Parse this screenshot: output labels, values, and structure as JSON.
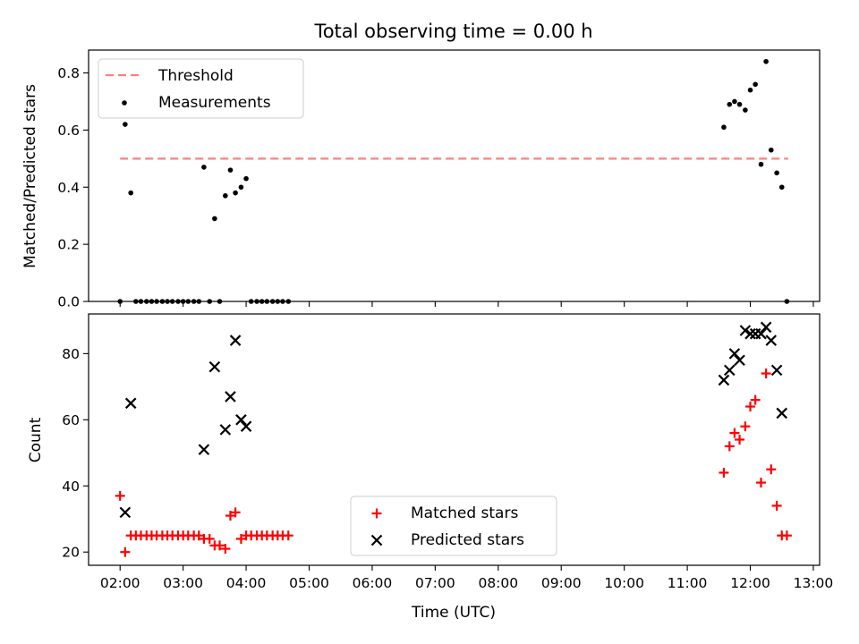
{
  "chart_data": [
    {
      "type": "scatter",
      "title": "Total observing time = 0.00 h",
      "xlabel": "",
      "ylabel": "Matched/Predicted stars",
      "ylim": [
        0,
        0.88
      ],
      "yticks": [
        "0.0",
        "0.2",
        "0.4",
        "0.6",
        "0.8"
      ],
      "xlim": [
        1.5,
        13.1
      ],
      "legend_position": "upper-left",
      "grid": false,
      "threshold": {
        "name": "Threshold",
        "value": 0.5,
        "x_range": [
          2.0,
          12.6
        ],
        "color": "#ff7f7f",
        "style": "dashed"
      },
      "series": [
        {
          "name": "Measurements",
          "color": "#000000",
          "marker": "dot",
          "x": [
            2.0,
            2.08,
            2.17,
            2.25,
            2.33,
            2.42,
            2.5,
            2.58,
            2.67,
            2.75,
            2.83,
            2.92,
            3.0,
            3.08,
            3.17,
            3.25,
            3.33,
            3.42,
            3.5,
            3.58,
            3.67,
            3.75,
            3.83,
            3.92,
            4.0,
            4.08,
            4.17,
            4.25,
            4.33,
            4.42,
            4.5,
            4.58,
            4.67,
            11.58,
            11.67,
            11.75,
            11.83,
            11.92,
            12.0,
            12.08,
            12.17,
            12.25,
            12.33,
            12.42,
            12.5,
            12.58
          ],
          "y": [
            0.0,
            0.62,
            0.38,
            0.0,
            0.0,
            0.0,
            0.0,
            0.0,
            0.0,
            0.0,
            0.0,
            0.0,
            0.0,
            0.0,
            0.0,
            0.0,
            0.47,
            0.0,
            0.29,
            0.0,
            0.37,
            0.46,
            0.38,
            0.4,
            0.43,
            0.0,
            0.0,
            0.0,
            0.0,
            0.0,
            0.0,
            0.0,
            0.0,
            0.61,
            0.69,
            0.7,
            0.69,
            0.67,
            0.74,
            0.76,
            0.48,
            0.84,
            0.53,
            0.45,
            0.4,
            0.0
          ]
        }
      ]
    },
    {
      "type": "scatter",
      "title": "",
      "xlabel": "Time (UTC)",
      "ylabel": "Count",
      "ylim": [
        16,
        92
      ],
      "yticks": [
        "20",
        "40",
        "60",
        "80"
      ],
      "xlim": [
        1.5,
        13.1
      ],
      "xticks": [
        {
          "value": 2,
          "label": "02:00"
        },
        {
          "value": 3,
          "label": "03:00"
        },
        {
          "value": 4,
          "label": "04:00"
        },
        {
          "value": 5,
          "label": "05:00"
        },
        {
          "value": 6,
          "label": "06:00"
        },
        {
          "value": 7,
          "label": "07:00"
        },
        {
          "value": 8,
          "label": "08:00"
        },
        {
          "value": 9,
          "label": "09:00"
        },
        {
          "value": 10,
          "label": "10:00"
        },
        {
          "value": 11,
          "label": "11:00"
        },
        {
          "value": 12,
          "label": "12:00"
        },
        {
          "value": 13,
          "label": "13:00"
        }
      ],
      "legend_position": "lower-center",
      "grid": false,
      "series": [
        {
          "name": "Matched stars",
          "color": "#ff0000",
          "marker": "plus",
          "x": [
            2.0,
            2.08,
            2.17,
            2.25,
            2.33,
            2.42,
            2.5,
            2.58,
            2.67,
            2.75,
            2.83,
            2.92,
            3.0,
            3.08,
            3.17,
            3.25,
            3.33,
            3.42,
            3.5,
            3.58,
            3.67,
            3.75,
            3.83,
            3.92,
            4.0,
            4.08,
            4.17,
            4.25,
            4.33,
            4.42,
            4.5,
            4.58,
            4.67,
            11.58,
            11.67,
            11.75,
            11.83,
            11.92,
            12.0,
            12.08,
            12.17,
            12.25,
            12.33,
            12.42,
            12.5,
            12.58
          ],
          "y": [
            37,
            20,
            25,
            25,
            25,
            25,
            25,
            25,
            25,
            25,
            25,
            25,
            25,
            25,
            25,
            25,
            24,
            24,
            22,
            22,
            21,
            31,
            32,
            24,
            25,
            25,
            25,
            25,
            25,
            25,
            25,
            25,
            25,
            44,
            52,
            56,
            54,
            58,
            64,
            66,
            41,
            74,
            45,
            34,
            25,
            25
          ]
        },
        {
          "name": "Predicted stars",
          "color": "#000000",
          "marker": "x",
          "x": [
            2.08,
            2.17,
            3.33,
            3.5,
            3.67,
            3.75,
            3.83,
            3.92,
            4.0,
            11.58,
            11.67,
            11.75,
            11.83,
            11.92,
            12.0,
            12.08,
            12.17,
            12.25,
            12.33,
            12.42,
            12.5
          ],
          "y": [
            32,
            65,
            51,
            76,
            57,
            67,
            84,
            60,
            58,
            72,
            75,
            80,
            78,
            87,
            86,
            86,
            86,
            88,
            84,
            75,
            62
          ]
        }
      ]
    }
  ]
}
